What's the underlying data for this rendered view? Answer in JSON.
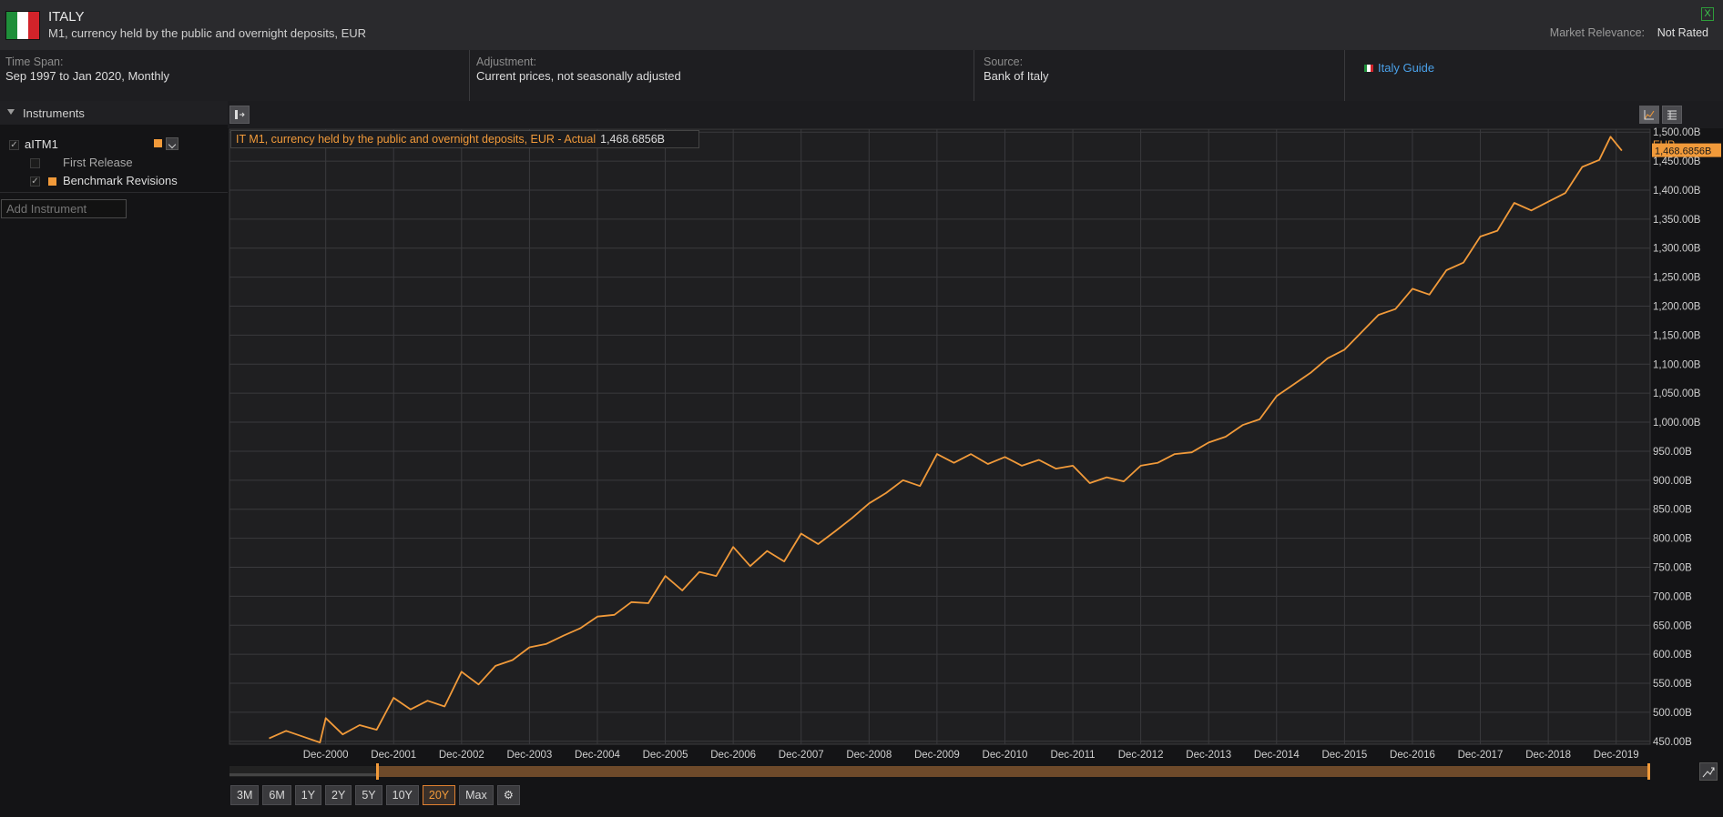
{
  "header": {
    "country": "ITALY",
    "subtitle": "M1, currency held by the public and overnight deposits, EUR",
    "market_relevance_label": "Market Relevance:",
    "market_relevance_value": "Not Rated",
    "close_glyph": "X",
    "flag_colors": [
      "#1f8f3a",
      "#ffffff",
      "#d2232a"
    ]
  },
  "meta": {
    "time_span_label": "Time Span:",
    "time_span_value": "Sep 1997 to Jan 2020, Monthly",
    "adjustment_label": "Adjustment:",
    "adjustment_value": "Current prices, not seasonally adjusted",
    "source_label": "Source:",
    "source_value": "Bank of Italy",
    "guide_link": "Italy Guide"
  },
  "sidebar": {
    "title": "Instruments",
    "instrument": "aITM1",
    "first_release": "First Release",
    "benchmark": "Benchmark Revisions",
    "add_placeholder": "Add Instrument"
  },
  "legend": {
    "series_label": "IT M1, currency held by the public and overnight deposits, EUR - Actual",
    "value": "1,468.6856B"
  },
  "colors": {
    "accent": "#f19a3a",
    "background": "#1f1f21",
    "grid": "#3a3a3d"
  },
  "range_buttons": [
    "3M",
    "6M",
    "1Y",
    "2Y",
    "5Y",
    "10Y",
    "20Y",
    "Max"
  ],
  "range_active": "20Y",
  "chart_data": {
    "type": "line",
    "unit": "EUR",
    "y_tick_format": "{v}B",
    "ylim": [
      445,
      1505
    ],
    "y_ticks": [
      "450.00B",
      "500.00B",
      "550.00B",
      "600.00B",
      "650.00B",
      "700.00B",
      "750.00B",
      "800.00B",
      "850.00B",
      "900.00B",
      "950.00B",
      "1,000.00B",
      "1,050.00B",
      "1,100.00B",
      "1,150.00B",
      "1,200.00B",
      "1,250.00B",
      "1,300.00B",
      "1,350.00B",
      "1,400.00B",
      "1,450.00B",
      "1,500.00B"
    ],
    "x_tick_labels": [
      "Dec-2000",
      "Dec-2001",
      "Dec-2002",
      "Dec-2003",
      "Dec-2004",
      "Dec-2005",
      "Dec-2006",
      "Dec-2007",
      "Dec-2008",
      "Dec-2009",
      "Dec-2010",
      "Dec-2011",
      "Dec-2012",
      "Dec-2013",
      "Dec-2014",
      "Dec-2015",
      "Dec-2016",
      "Dec-2017",
      "Dec-2018",
      "Dec-2019"
    ],
    "last_value_label": "1,468.6856B",
    "grid": true,
    "series": [
      {
        "name": "IT M1, currency held by the public and overnight deposits, EUR - Actual",
        "color": "#f19a3a",
        "x": [
          "Feb-2000",
          "May-2000",
          "Aug-2000",
          "Nov-2000",
          "Dec-2000",
          "Mar-2001",
          "Jun-2001",
          "Sep-2001",
          "Dec-2001",
          "Mar-2002",
          "Jun-2002",
          "Sep-2002",
          "Dec-2002",
          "Mar-2003",
          "Jun-2003",
          "Sep-2003",
          "Dec-2003",
          "Mar-2004",
          "Jun-2004",
          "Sep-2004",
          "Dec-2004",
          "Mar-2005",
          "Jun-2005",
          "Sep-2005",
          "Dec-2005",
          "Mar-2006",
          "Jun-2006",
          "Sep-2006",
          "Dec-2006",
          "Mar-2007",
          "Jun-2007",
          "Sep-2007",
          "Dec-2007",
          "Mar-2008",
          "Jun-2008",
          "Sep-2008",
          "Dec-2008",
          "Mar-2009",
          "Jun-2009",
          "Sep-2009",
          "Dec-2009",
          "Mar-2010",
          "Jun-2010",
          "Sep-2010",
          "Dec-2010",
          "Mar-2011",
          "Jun-2011",
          "Sep-2011",
          "Dec-2011",
          "Mar-2012",
          "Jun-2012",
          "Sep-2012",
          "Dec-2012",
          "Mar-2013",
          "Jun-2013",
          "Sep-2013",
          "Dec-2013",
          "Mar-2014",
          "Jun-2014",
          "Sep-2014",
          "Dec-2014",
          "Mar-2015",
          "Jun-2015",
          "Sep-2015",
          "Dec-2015",
          "Mar-2016",
          "Jun-2016",
          "Sep-2016",
          "Dec-2016",
          "Mar-2017",
          "Jun-2017",
          "Sep-2017",
          "Dec-2017",
          "Mar-2018",
          "Jun-2018",
          "Sep-2018",
          "Dec-2018",
          "Mar-2019",
          "Jun-2019",
          "Sep-2019",
          "Nov-2019",
          "Dec-2019",
          "Jan-2020"
        ],
        "values": [
          455,
          468,
          458,
          448,
          490,
          462,
          478,
          470,
          525,
          505,
          520,
          510,
          570,
          548,
          580,
          590,
          612,
          618,
          632,
          645,
          665,
          668,
          690,
          688,
          735,
          710,
          742,
          735,
          785,
          752,
          778,
          760,
          808,
          790,
          812,
          835,
          860,
          878,
          900,
          890,
          945,
          930,
          945,
          928,
          940,
          925,
          935,
          920,
          925,
          895,
          905,
          898,
          925,
          930,
          945,
          948,
          965,
          975,
          995,
          1005,
          1045,
          1065,
          1085,
          1110,
          1125,
          1155,
          1185,
          1195,
          1230,
          1220,
          1262,
          1275,
          1320,
          1330,
          1378,
          1365,
          1380,
          1395,
          1440,
          1452,
          1492,
          1480,
          1468
        ]
      }
    ]
  }
}
